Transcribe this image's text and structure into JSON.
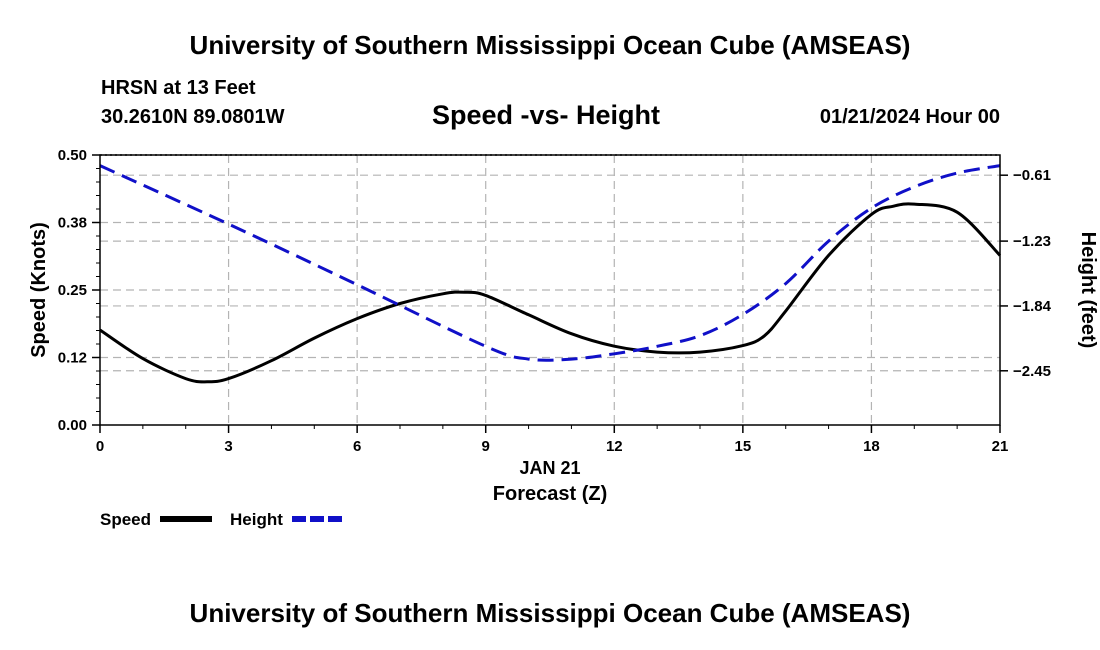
{
  "header": {
    "title": "University of Southern Mississippi Ocean Cube (AMSEAS)",
    "station": "HRSN at 13 Feet",
    "coords": "30.2610N  89.0801W",
    "chart_title": "Speed -vs- Height",
    "date": "01/21/2024 Hour 00"
  },
  "footer": {
    "title": "University of Southern Mississippi Ocean Cube (AMSEAS)"
  },
  "colors": {
    "speed": "#000000",
    "height": "#1010c8",
    "grid": "#b4b4b4"
  },
  "chart_data": {
    "type": "line",
    "title": "Speed -vs- Height",
    "xlabel": "Forecast (Z)",
    "xsublabel": "JAN 21",
    "ylabel": "Speed (Knots)",
    "y2label": "Height (feet)",
    "xlim": [
      0,
      21
    ],
    "ylim": [
      0,
      0.5
    ],
    "y2lim": [
      -2.96,
      -0.42
    ],
    "xticks": [
      0,
      3,
      6,
      9,
      12,
      15,
      18,
      21
    ],
    "yticks": [
      {
        "value": 0.0,
        "label": "0.00"
      },
      {
        "value": 0.125,
        "label": "0.12"
      },
      {
        "value": 0.25,
        "label": "0.25"
      },
      {
        "value": 0.375,
        "label": "0.38"
      },
      {
        "value": 0.5,
        "label": "0.50"
      }
    ],
    "y2ticks": [
      {
        "value": -0.61,
        "label": "−0.61"
      },
      {
        "value": -1.23,
        "label": "−1.23"
      },
      {
        "value": -1.84,
        "label": "−1.84"
      },
      {
        "value": -2.45,
        "label": "−2.45"
      }
    ],
    "legend": [
      {
        "name": "Speed",
        "key": "speed"
      },
      {
        "name": "Height",
        "key": "height"
      }
    ],
    "series": [
      {
        "name": "Speed",
        "axis": "left",
        "style": "solid",
        "x": [
          0,
          1,
          2,
          2.5,
          3,
          4,
          5,
          6,
          7,
          8,
          8.5,
          9,
          10,
          11,
          12,
          13,
          14,
          15,
          15.5,
          16,
          17,
          18,
          18.5,
          19,
          20,
          21
        ],
        "values": [
          0.176,
          0.123,
          0.086,
          0.08,
          0.086,
          0.119,
          0.161,
          0.197,
          0.225,
          0.243,
          0.246,
          0.24,
          0.204,
          0.169,
          0.146,
          0.135,
          0.135,
          0.147,
          0.165,
          0.211,
          0.314,
          0.39,
          0.405,
          0.409,
          0.394,
          0.314
        ]
      },
      {
        "name": "Height",
        "axis": "right",
        "style": "dashed",
        "x": [
          0,
          3,
          6,
          9,
          10,
          11,
          12,
          13,
          14,
          15,
          16,
          17,
          18,
          19,
          20,
          21
        ],
        "values": [
          -0.52,
          -1.07,
          -1.64,
          -2.22,
          -2.34,
          -2.34,
          -2.29,
          -2.22,
          -2.12,
          -1.92,
          -1.63,
          -1.23,
          -0.92,
          -0.72,
          -0.59,
          -0.52
        ]
      }
    ]
  }
}
